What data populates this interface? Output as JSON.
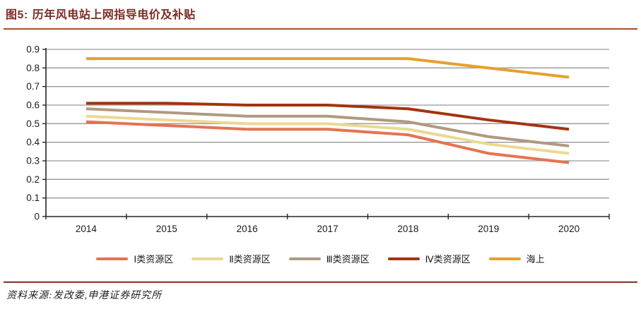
{
  "figure": {
    "label": "图5:",
    "title": "历年风电站上网指导电价及补贴"
  },
  "source_note": "资料来源:发改委,申港证券研究所",
  "colors": {
    "title_text": "#7E2B25",
    "header_rule": "#B5491F",
    "footer_rule": "#7F3624",
    "axis": "#262626",
    "gridline": "#969696",
    "tick_label": "#1a1a1a"
  },
  "chart_data": {
    "type": "line",
    "title": "历年风电站上网指导电价及补贴",
    "x": [
      "2014",
      "2015",
      "2016",
      "2017",
      "2018",
      "2019",
      "2020"
    ],
    "series": [
      {
        "name": "Ⅰ类资源区",
        "color": "#E57352",
        "values": [
          0.51,
          0.49,
          0.47,
          0.47,
          0.44,
          0.34,
          0.29
        ]
      },
      {
        "name": "Ⅱ类资源区",
        "color": "#EBD992",
        "values": [
          0.54,
          0.52,
          0.5,
          0.5,
          0.47,
          0.39,
          0.34
        ]
      },
      {
        "name": "Ⅲ类资源区",
        "color": "#AF9A80",
        "values": [
          0.58,
          0.56,
          0.54,
          0.54,
          0.51,
          0.43,
          0.38
        ]
      },
      {
        "name": "Ⅳ类资源区",
        "color": "#A4330F",
        "values": [
          0.61,
          0.61,
          0.6,
          0.6,
          0.58,
          0.52,
          0.47
        ]
      },
      {
        "name": "海上",
        "color": "#E7A02E",
        "values": [
          0.85,
          0.85,
          0.85,
          0.85,
          0.85,
          0.8,
          0.75
        ]
      }
    ],
    "ylim": [
      0,
      0.9
    ],
    "y_tick_labels": [
      "0.9",
      "0.8",
      "0.7",
      "0.6",
      "0.5",
      "0.4",
      "0.3",
      "0.2",
      "0.1",
      "0"
    ],
    "xlabel": "",
    "ylabel": "",
    "grid": true,
    "legend_position": "bottom"
  }
}
